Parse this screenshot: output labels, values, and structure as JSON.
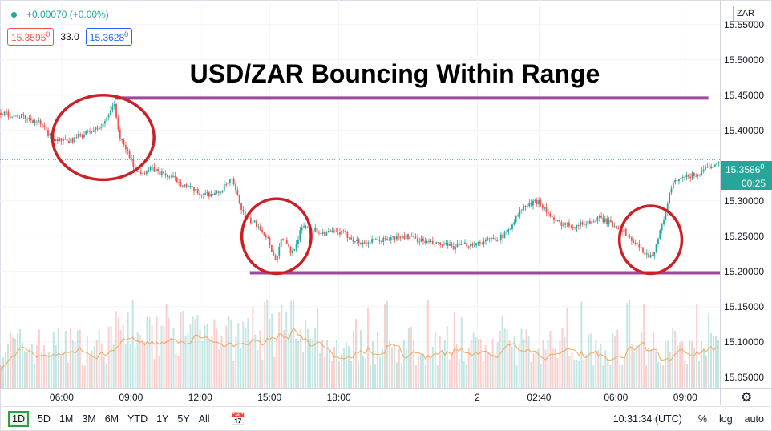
{
  "legend": {
    "change": "+0.00070 (+0.00%)",
    "bid": "15.3595",
    "bid_sup": "0",
    "spread": "33.0",
    "ask": "15.3628",
    "ask_sup": "0"
  },
  "symbol": "ZAR",
  "last_price": {
    "value": "15.3586",
    "value_sup": "0",
    "countdown": "00:25"
  },
  "bottom_bar": {
    "ranges": [
      "1D",
      "5D",
      "1M",
      "3M",
      "6M",
      "YTD",
      "1Y",
      "5Y",
      "All"
    ],
    "active_range": "1D",
    "calendar_icon": "calendar-range-icon",
    "clock": "10:31:34 (UTC)",
    "percent_label": "%",
    "log_label": "log",
    "auto_label": "auto"
  },
  "settings_icon": "gear-icon",
  "colors": {
    "up": "#26a69a",
    "down": "#ef5350",
    "range_lines": "#9c4a9c",
    "circles": "#cc2027",
    "ma": "#f0a050",
    "accent": "#2962ff"
  },
  "chart_data": {
    "type": "line",
    "title": "USD/ZAR Bouncing Within Range",
    "xlabel": "",
    "ylabel": "",
    "ylim": [
      15.035,
      15.585
    ],
    "grid": true,
    "y_ticks": [
      "15.55000",
      "15.50000",
      "15.45000",
      "15.40000",
      "15.35000",
      "15.30000",
      "15.25000",
      "15.20000",
      "15.15000",
      "15.10000",
      "15.05000"
    ],
    "x_tick_labels": [
      "06:00",
      "09:00",
      "12:00",
      "15:00",
      "18:00",
      "2",
      "02:40",
      "06:00",
      "09:00"
    ],
    "x_tick_hours": [
      6,
      9,
      12,
      15,
      18,
      24,
      26.67,
      30,
      33
    ],
    "x_range_hours": [
      3.33,
      34.5
    ],
    "price_path": [
      {
        "t": 3.33,
        "p": 15.425
      },
      {
        "t": 4.3,
        "p": 15.42
      },
      {
        "t": 5.0,
        "p": 15.413
      },
      {
        "t": 5.6,
        "p": 15.39
      },
      {
        "t": 6.3,
        "p": 15.383
      },
      {
        "t": 7.0,
        "p": 15.395
      },
      {
        "t": 7.8,
        "p": 15.405
      },
      {
        "t": 8.3,
        "p": 15.44
      },
      {
        "t": 8.6,
        "p": 15.385
      },
      {
        "t": 8.9,
        "p": 15.37
      },
      {
        "t": 9.3,
        "p": 15.34
      },
      {
        "t": 10.0,
        "p": 15.345
      },
      {
        "t": 11.0,
        "p": 15.33
      },
      {
        "t": 12.0,
        "p": 15.31
      },
      {
        "t": 12.8,
        "p": 15.31
      },
      {
        "t": 13.4,
        "p": 15.33
      },
      {
        "t": 14.0,
        "p": 15.275
      },
      {
        "t": 14.6,
        "p": 15.265
      },
      {
        "t": 15.0,
        "p": 15.245
      },
      {
        "t": 15.3,
        "p": 15.215
      },
      {
        "t": 15.6,
        "p": 15.25
      },
      {
        "t": 16.0,
        "p": 15.225
      },
      {
        "t": 16.5,
        "p": 15.265
      },
      {
        "t": 17.3,
        "p": 15.255
      },
      {
        "t": 18.2,
        "p": 15.255
      },
      {
        "t": 19.0,
        "p": 15.24
      },
      {
        "t": 20.0,
        "p": 15.245
      },
      {
        "t": 21.0,
        "p": 15.25
      },
      {
        "t": 22.0,
        "p": 15.24
      },
      {
        "t": 23.0,
        "p": 15.235
      },
      {
        "t": 24.0,
        "p": 15.24
      },
      {
        "t": 25.2,
        "p": 15.25
      },
      {
        "t": 26.0,
        "p": 15.29
      },
      {
        "t": 26.7,
        "p": 15.3
      },
      {
        "t": 27.4,
        "p": 15.27
      },
      {
        "t": 28.3,
        "p": 15.265
      },
      {
        "t": 29.4,
        "p": 15.275
      },
      {
        "t": 30.3,
        "p": 15.26
      },
      {
        "t": 31.0,
        "p": 15.235
      },
      {
        "t": 31.6,
        "p": 15.22
      },
      {
        "t": 32.0,
        "p": 15.26
      },
      {
        "t": 32.5,
        "p": 15.325
      },
      {
        "t": 33.2,
        "p": 15.335
      },
      {
        "t": 33.8,
        "p": 15.34
      },
      {
        "t": 34.5,
        "p": 15.358
      }
    ],
    "last_price": 15.3586,
    "range_lines": [
      {
        "price": 15.446,
        "t_start": 8.33,
        "t_end": 34.0
      },
      {
        "price": 15.198,
        "t_start": 14.15,
        "t_end": 34.5
      }
    ],
    "circled_areas": [
      {
        "t_center": 7.8,
        "p_center": 15.39,
        "t_radius": 2.2,
        "p_radius": 0.06
      },
      {
        "t_center": 15.3,
        "p_center": 15.25,
        "t_radius": 1.5,
        "p_radius": 0.053
      },
      {
        "t_center": 31.5,
        "p_center": 15.245,
        "t_radius": 1.35,
        "p_radius": 0.048
      }
    ]
  }
}
